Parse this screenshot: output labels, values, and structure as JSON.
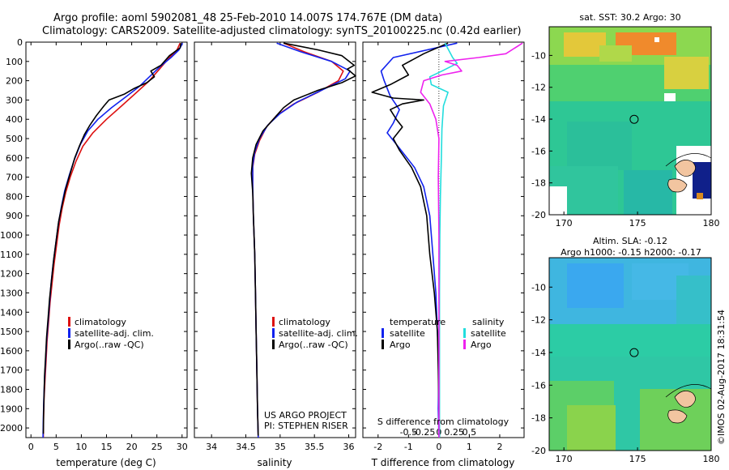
{
  "header": {
    "line1": "Argo profile: aoml 5902081_48 25-Feb-2010 14.007S 174.767E (DM data)",
    "line2": "Climatology: CARS2009. Satellite-adjusted climatology: synTS_20100225.nc (0.42d earlier)"
  },
  "side_labels": {
    "timestamp": "©IMOS 02-Aug-2017 18:31:54",
    "project": "US ARGO PROJECT",
    "pi": "PI: STEPHEN RISER"
  },
  "colors": {
    "climatology": "#dd1111",
    "satellite": "#1122ee",
    "argo": "#000000",
    "salinity_satellite": "#22dddd",
    "salinity_argo": "#ee22ee"
  },
  "chart_data": [
    {
      "type": "line",
      "name": "temperature",
      "xlabel": "temperature (deg C)",
      "xlim": [
        -1,
        31
      ],
      "ylim": [
        2050,
        0
      ],
      "xticks": [
        0,
        5,
        10,
        15,
        20,
        25,
        30
      ],
      "yticks": [
        0,
        100,
        200,
        300,
        400,
        500,
        600,
        700,
        800,
        900,
        1000,
        1100,
        1200,
        1300,
        1400,
        1500,
        1600,
        1700,
        1800,
        1900,
        2000
      ],
      "legend": [
        "climatology",
        "satellite-adj. clim.",
        "Argo(..raw -QC)"
      ],
      "series": [
        {
          "name": "climatology",
          "color": "#dd1111",
          "points": [
            [
              29.6,
              5
            ],
            [
              29,
              40
            ],
            [
              27.5,
              80
            ],
            [
              25.5,
              140
            ],
            [
              23.5,
              200
            ],
            [
              21,
              260
            ],
            [
              18,
              330
            ],
            [
              15,
              400
            ],
            [
              12.3,
              470
            ],
            [
              10.3,
              540
            ],
            [
              8.9,
              620
            ],
            [
              7.8,
              700
            ],
            [
              6.9,
              780
            ],
            [
              6.2,
              860
            ],
            [
              5.6,
              950
            ],
            [
              5.1,
              1050
            ],
            [
              4.6,
              1150
            ],
            [
              4.2,
              1250
            ],
            [
              3.8,
              1350
            ],
            [
              3.5,
              1450
            ],
            [
              3.2,
              1550
            ],
            [
              3,
              1650
            ],
            [
              2.8,
              1750
            ],
            [
              2.6,
              1850
            ],
            [
              2.5,
              1950
            ],
            [
              2.45,
              2050
            ]
          ]
        },
        {
          "name": "satellite-adj. clim.",
          "color": "#1122ee",
          "points": [
            [
              30.1,
              5
            ],
            [
              29.4,
              40
            ],
            [
              27.8,
              80
            ],
            [
              25.5,
              130
            ],
            [
              23.5,
              180
            ],
            [
              21.5,
              230
            ],
            [
              19,
              280
            ],
            [
              16,
              340
            ],
            [
              13.3,
              400
            ],
            [
              11.3,
              460
            ],
            [
              9.8,
              530
            ],
            [
              8.6,
              610
            ],
            [
              7.6,
              690
            ],
            [
              6.7,
              770
            ],
            [
              6,
              860
            ],
            [
              5.4,
              950
            ],
            [
              4.9,
              1050
            ],
            [
              4.4,
              1150
            ],
            [
              4,
              1250
            ],
            [
              3.7,
              1350
            ],
            [
              3.4,
              1450
            ],
            [
              3.1,
              1550
            ],
            [
              2.9,
              1650
            ],
            [
              2.7,
              1750
            ],
            [
              2.55,
              1850
            ],
            [
              2.45,
              1950
            ],
            [
              2.4,
              2050
            ]
          ]
        },
        {
          "name": "Argo",
          "color": "#000000",
          "points": [
            [
              29.8,
              5
            ],
            [
              29.6,
              30
            ],
            [
              27.5,
              70
            ],
            [
              25.8,
              120
            ],
            [
              23.8,
              150
            ],
            [
              24.5,
              180
            ],
            [
              23,
              210
            ],
            [
              20.5,
              240
            ],
            [
              18.5,
              270
            ],
            [
              15.5,
              300
            ],
            [
              14.5,
              330
            ],
            [
              13,
              380
            ],
            [
              11.7,
              430
            ],
            [
              10.6,
              480
            ],
            [
              9.6,
              540
            ],
            [
              8.7,
              600
            ],
            [
              7.8,
              680
            ],
            [
              6.9,
              760
            ],
            [
              6.2,
              840
            ],
            [
              5.5,
              930
            ],
            [
              5,
              1030
            ],
            [
              4.5,
              1130
            ],
            [
              4.1,
              1230
            ],
            [
              3.7,
              1330
            ],
            [
              3.4,
              1430
            ],
            [
              3.1,
              1530
            ],
            [
              2.9,
              1630
            ],
            [
              2.7,
              1730
            ],
            [
              2.6,
              1830
            ],
            [
              2.5,
              1930
            ],
            [
              2.45,
              2030
            ]
          ]
        }
      ]
    },
    {
      "type": "line",
      "name": "salinity",
      "xlabel": "salinity",
      "xlim": [
        33.75,
        36.1
      ],
      "ylim": [
        2050,
        0
      ],
      "xticks": [
        34,
        34.5,
        35,
        35.5,
        36
      ],
      "xtick_labels": [
        "34",
        "34.5",
        "35",
        "35.5",
        "36"
      ],
      "legend": [
        "climatology",
        "satellite-adj. clim.",
        "Argo(..raw -QC)"
      ],
      "series": [
        {
          "name": "climatology",
          "color": "#dd1111",
          "points": [
            [
              35.05,
              5
            ],
            [
              35.35,
              50
            ],
            [
              35.75,
              100
            ],
            [
              35.92,
              150
            ],
            [
              35.85,
              200
            ],
            [
              35.55,
              260
            ],
            [
              35.2,
              320
            ],
            [
              34.95,
              380
            ],
            [
              34.8,
              440
            ],
            [
              34.7,
              510
            ],
            [
              34.63,
              580
            ],
            [
              34.6,
              650
            ],
            [
              34.6,
              750
            ],
            [
              34.61,
              900
            ],
            [
              34.63,
              1100
            ],
            [
              34.64,
              1300
            ],
            [
              34.65,
              1500
            ],
            [
              34.66,
              1700
            ],
            [
              34.67,
              1900
            ],
            [
              34.68,
              2050
            ]
          ]
        },
        {
          "name": "satellite-adj. clim.",
          "color": "#1122ee",
          "points": [
            [
              34.95,
              5
            ],
            [
              35.3,
              50
            ],
            [
              35.75,
              100
            ],
            [
              36.02,
              150
            ],
            [
              35.95,
              190
            ],
            [
              35.6,
              250
            ],
            [
              35.25,
              310
            ],
            [
              35,
              370
            ],
            [
              34.82,
              430
            ],
            [
              34.7,
              500
            ],
            [
              34.63,
              570
            ],
            [
              34.6,
              640
            ],
            [
              34.6,
              740
            ],
            [
              34.61,
              900
            ],
            [
              34.63,
              1100
            ],
            [
              34.64,
              1300
            ],
            [
              34.65,
              1500
            ],
            [
              34.66,
              1700
            ],
            [
              34.67,
              1900
            ],
            [
              34.68,
              2050
            ]
          ]
        },
        {
          "name": "Argo",
          "color": "#000000",
          "points": [
            [
              35.05,
              5
            ],
            [
              35.55,
              40
            ],
            [
              35.9,
              70
            ],
            [
              36.08,
              120
            ],
            [
              35.98,
              140
            ],
            [
              36.1,
              175
            ],
            [
              35.9,
              210
            ],
            [
              35.55,
              250
            ],
            [
              35.2,
              300
            ],
            [
              35.05,
              340
            ],
            [
              34.9,
              400
            ],
            [
              34.75,
              460
            ],
            [
              34.65,
              530
            ],
            [
              34.6,
              600
            ],
            [
              34.58,
              680
            ],
            [
              34.6,
              780
            ],
            [
              34.61,
              900
            ],
            [
              34.63,
              1100
            ],
            [
              34.64,
              1300
            ],
            [
              34.65,
              1500
            ],
            [
              34.66,
              1700
            ],
            [
              34.67,
              1900
            ],
            [
              34.68,
              2040
            ]
          ]
        }
      ]
    },
    {
      "type": "line",
      "name": "differences",
      "xlabel": "T difference from climatology",
      "xlabel_top": "S difference from climatology",
      "xlim": [
        -2.5,
        2.8
      ],
      "ylim": [
        2050,
        0
      ],
      "xticks": [
        -2,
        -1,
        0,
        1,
        2
      ],
      "xtick_labels": [
        "-2",
        "-1",
        "0",
        "1",
        "2"
      ],
      "s_ticks": [
        -0.5,
        -0.25,
        0,
        0.25,
        0.5
      ],
      "s_tick_labels": [
        "-0.5",
        "-0.25",
        "0",
        "0.25",
        "0.5"
      ],
      "s_scale": 0.5,
      "legend_titles": [
        "temperature",
        "salinity"
      ],
      "legend": [
        "satellite",
        "Argo",
        "satellite",
        "Argo"
      ],
      "series": [
        {
          "name": "temperature satellite",
          "color": "#1122ee",
          "points": [
            [
              0.6,
              5
            ],
            [
              -1.5,
              80
            ],
            [
              -1.9,
              150
            ],
            [
              -1.8,
              200
            ],
            [
              -1.6,
              280
            ],
            [
              -1.3,
              350
            ],
            [
              -1.5,
              420
            ],
            [
              -1.7,
              470
            ],
            [
              -1.3,
              550
            ],
            [
              -0.8,
              650
            ],
            [
              -0.5,
              750
            ],
            [
              -0.3,
              900
            ],
            [
              -0.2,
              1100
            ],
            [
              -0.1,
              1300
            ],
            [
              -0.05,
              1500
            ],
            [
              0,
              1700
            ],
            [
              -0.02,
              1900
            ],
            [
              0,
              2050
            ]
          ]
        },
        {
          "name": "temperature Argo",
          "color": "#000000",
          "points": [
            [
              0.3,
              5
            ],
            [
              -0.5,
              60
            ],
            [
              -1.2,
              120
            ],
            [
              -1,
              170
            ],
            [
              -1.6,
              220
            ],
            [
              -2.2,
              260
            ],
            [
              -1.5,
              290
            ],
            [
              -0.5,
              300
            ],
            [
              -1.2,
              320
            ],
            [
              -1.6,
              350
            ],
            [
              -1.4,
              400
            ],
            [
              -1.2,
              440
            ],
            [
              -1.5,
              500
            ],
            [
              -1.3,
              560
            ],
            [
              -0.9,
              650
            ],
            [
              -0.6,
              750
            ],
            [
              -0.4,
              900
            ],
            [
              -0.3,
              1100
            ],
            [
              -0.15,
              1300
            ],
            [
              -0.05,
              1500
            ],
            [
              -0.02,
              1700
            ],
            [
              0,
              1900
            ],
            [
              0.02,
              2050
            ]
          ]
        },
        {
          "name": "salinity satellite",
          "color": "#22dddd",
          "points": [
            [
              0.2,
              5
            ],
            [
              0.45,
              80
            ],
            [
              0.6,
              110
            ],
            [
              0.1,
              150
            ],
            [
              -0.3,
              180
            ],
            [
              -0.25,
              220
            ],
            [
              0.3,
              260
            ],
            [
              0.15,
              330
            ],
            [
              0.1,
              450
            ],
            [
              0.08,
              600
            ],
            [
              0.05,
              800
            ],
            [
              0.03,
              1000
            ],
            [
              0.02,
              1300
            ],
            [
              0.02,
              1600
            ],
            [
              0.02,
              1900
            ],
            [
              0.02,
              2050
            ]
          ]
        },
        {
          "name": "salinity Argo",
          "color": "#ee22ee",
          "points": [
            [
              2.75,
              5
            ],
            [
              2.2,
              60
            ],
            [
              1.3,
              80
            ],
            [
              0.2,
              100
            ],
            [
              0.6,
              120
            ],
            [
              0.75,
              150
            ],
            [
              0.1,
              170
            ],
            [
              -0.5,
              200
            ],
            [
              -0.6,
              260
            ],
            [
              -0.3,
              320
            ],
            [
              -0.1,
              400
            ],
            [
              0,
              500
            ],
            [
              -0.02,
              700
            ],
            [
              0,
              1000
            ],
            [
              0,
              1300
            ],
            [
              0,
              1600
            ],
            [
              0,
              1900
            ],
            [
              0,
              2050
            ]
          ]
        }
      ]
    },
    {
      "type": "heatmap",
      "name": "sst_map",
      "title": "sat. SST: 30.2 Argo: 30",
      "xlim": [
        169,
        180
      ],
      "ylim": [
        -20,
        -8.2
      ],
      "xticks": [
        170,
        175,
        180
      ],
      "yticks": [
        -20,
        -18,
        -16,
        -14,
        -12,
        -10
      ],
      "marker": [
        174.767,
        -14.007
      ]
    },
    {
      "type": "heatmap",
      "name": "sla_map",
      "title": "Altim. SLA: -0.12",
      "subtitle": "Argo h1000: -0.15 h2000: -0.17",
      "xlim": [
        169,
        180
      ],
      "ylim": [
        -20,
        -8.2
      ],
      "xticks": [
        170,
        175,
        180
      ],
      "yticks": [
        -20,
        -18,
        -16,
        -14,
        -12,
        -10
      ],
      "marker": [
        174.767,
        -14.007
      ]
    }
  ]
}
